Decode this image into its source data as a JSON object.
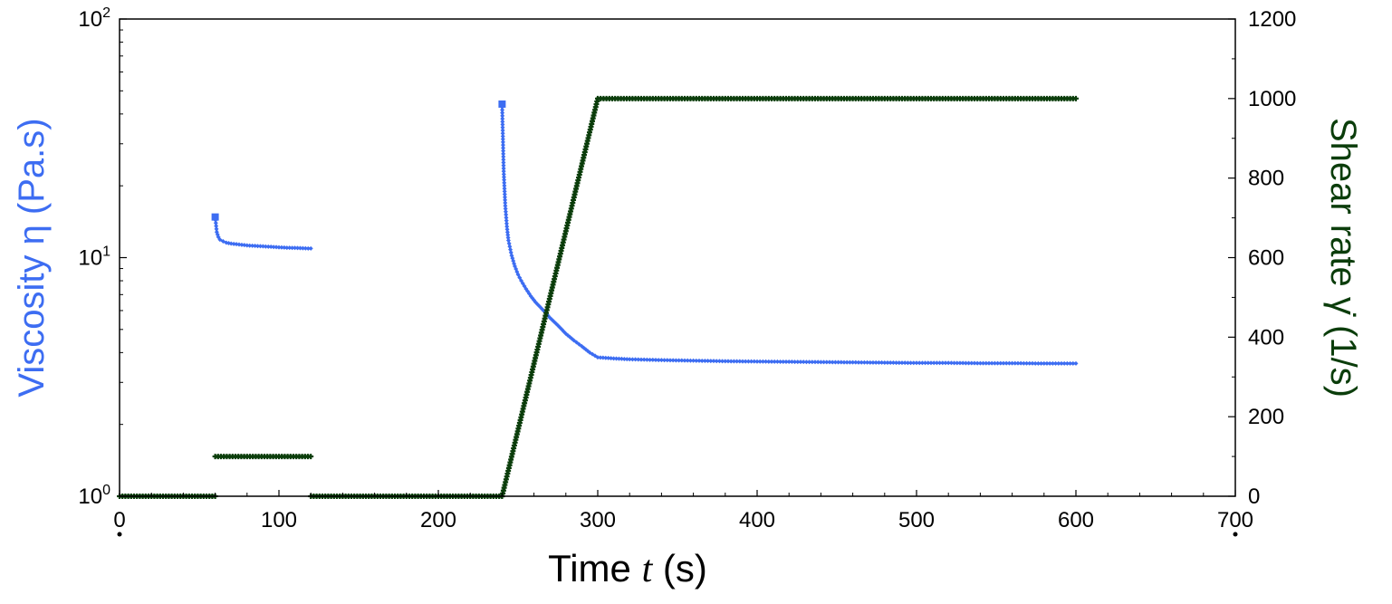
{
  "chart_data": {
    "type": "scatter",
    "title": "",
    "xlabel": {
      "prefix": "Time ",
      "symbol": "t",
      "suffix": "  (s)"
    },
    "ylabel_left": "Viscosity  η  (Pa.s)",
    "ylabel_right": "Shear rate  γ̇  (1/s)",
    "colors": {
      "viscosity": "#3d6df2",
      "shear_rate": "#0b3d0b",
      "axis": "#000000"
    },
    "x_axis": {
      "min": 0,
      "max": 700,
      "ticks": [
        0,
        100,
        200,
        300,
        400,
        500,
        600,
        700
      ]
    },
    "y_left": {
      "scale": "log",
      "min": 1,
      "max": 100,
      "ticks": [
        {
          "value": 1,
          "base": "10",
          "exp": "0"
        },
        {
          "value": 10,
          "base": "10",
          "exp": "1"
        },
        {
          "value": 100,
          "base": "10",
          "exp": "2"
        }
      ]
    },
    "y_right": {
      "scale": "linear",
      "min": 0,
      "max": 1200,
      "ticks": [
        0,
        200,
        400,
        600,
        800,
        1000,
        1200
      ]
    },
    "grid": false,
    "series": [
      {
        "axis": "left",
        "segments": [
          {
            "x": [
              60,
              61,
              62,
              63,
              65,
              67,
              70,
              75,
              80,
              85,
              90,
              95,
              100,
              105,
              110,
              115,
              120
            ],
            "y": [
              14.8,
              12.8,
              12.2,
              11.9,
              11.7,
              11.55,
              11.45,
              11.35,
              11.25,
              11.2,
              11.15,
              11.1,
              11.05,
              11.0,
              10.98,
              10.95,
              10.92
            ]
          },
          {
            "x": [
              240,
              241,
              242,
              243,
              244,
              246,
              248,
              250,
              252,
              255,
              258,
              261,
              265,
              270,
              275,
              280,
              285,
              290,
              295,
              300,
              310,
              320,
              340,
              360,
              380,
              400,
              420,
              440,
              460,
              480,
              500,
              520,
              540,
              560,
              580,
              600
            ],
            "y": [
              44,
              23,
              16.5,
              13.5,
              11.8,
              10.2,
              9.2,
              8.5,
              8.0,
              7.4,
              6.9,
              6.5,
              6.1,
              5.6,
              5.2,
              4.8,
              4.5,
              4.25,
              4.0,
              3.82,
              3.78,
              3.75,
              3.72,
              3.7,
              3.68,
              3.67,
              3.66,
              3.65,
              3.64,
              3.63,
              3.62,
              3.62,
              3.61,
              3.61,
              3.6,
              3.6
            ]
          }
        ]
      },
      {
        "axis": "right",
        "segments": [
          {
            "x": [
              0,
              60
            ],
            "y": [
              0,
              0
            ]
          },
          {
            "x": [
              60,
              120
            ],
            "y": [
              100,
              100
            ]
          },
          {
            "x": [
              120,
              240
            ],
            "y": [
              0,
              0
            ]
          },
          {
            "x": [
              240,
              300,
              600
            ],
            "y": [
              0,
              1000,
              1000
            ]
          }
        ]
      }
    ]
  }
}
